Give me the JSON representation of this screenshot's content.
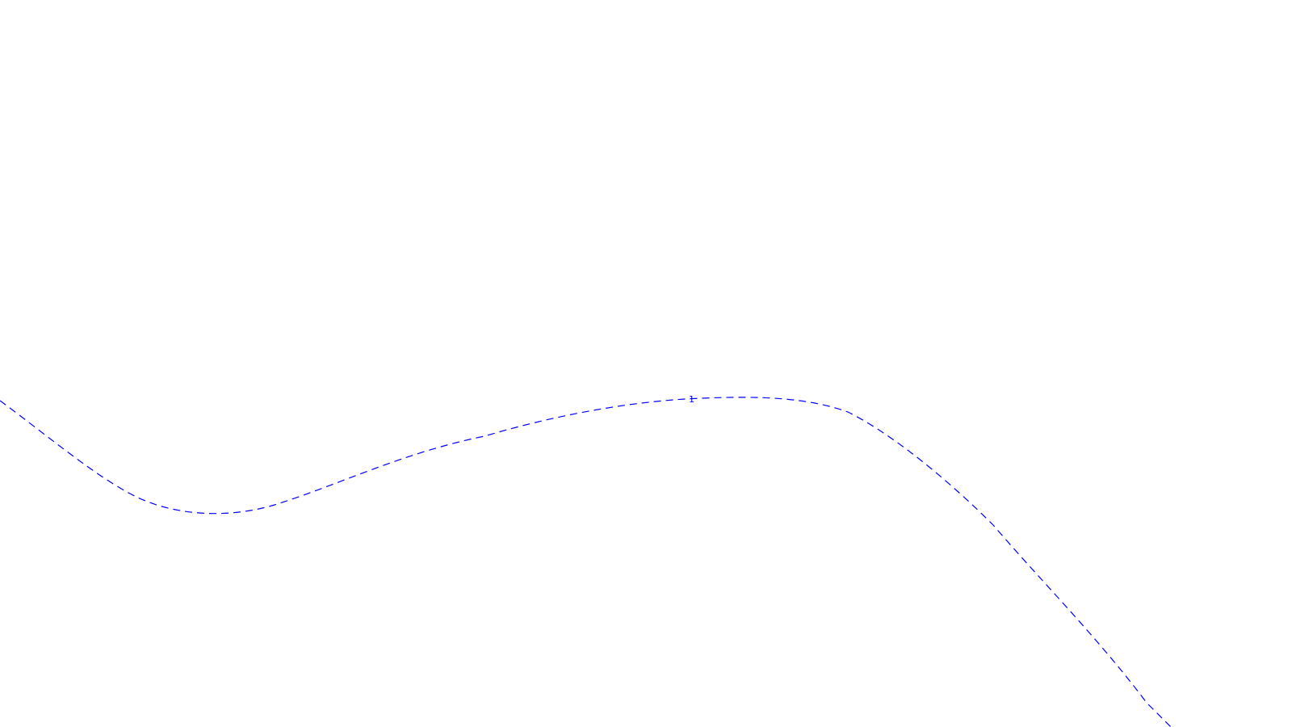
{
  "map": {
    "background_color": "#ffffff",
    "contours": [
      {
        "label": "1",
        "color": "#0000ff",
        "style": "dashed"
      }
    ]
  }
}
